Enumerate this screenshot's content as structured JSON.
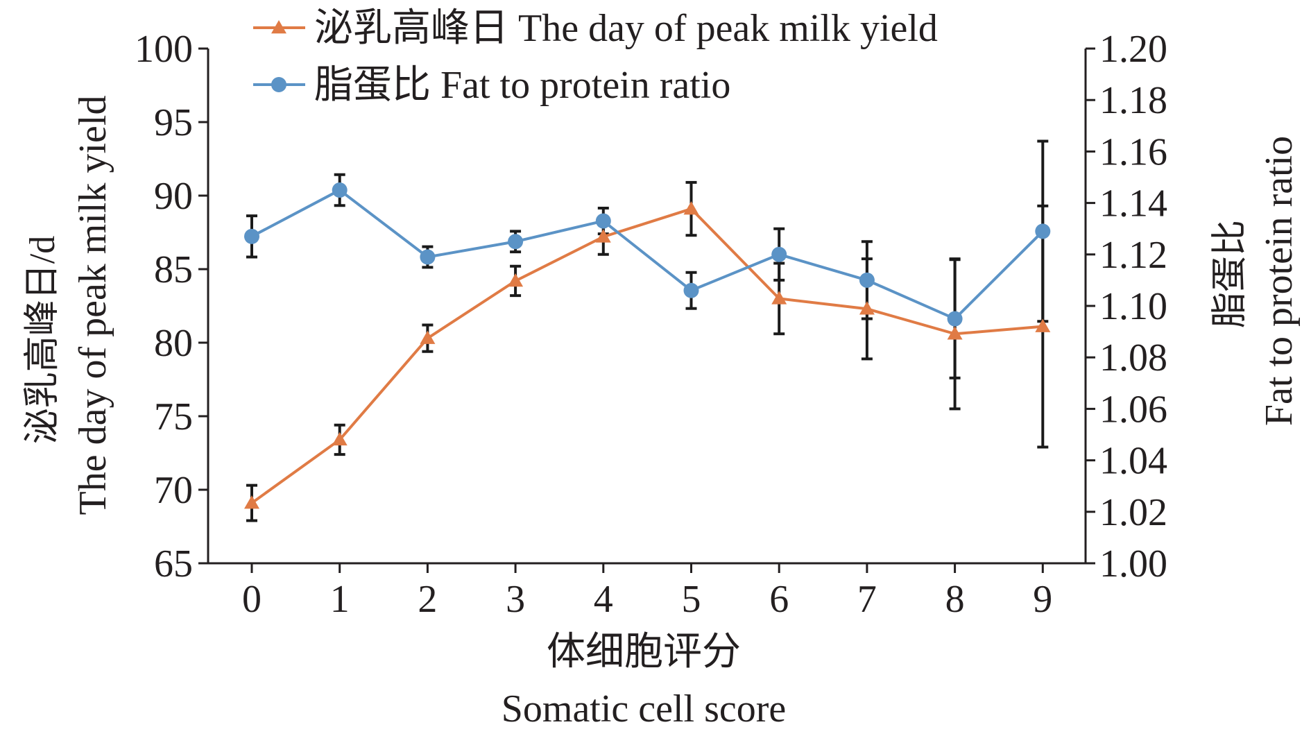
{
  "chart_data": {
    "type": "line",
    "x_categories": [
      "0",
      "1",
      "2",
      "3",
      "4",
      "5",
      "6",
      "7",
      "8",
      "9"
    ],
    "xlabel_cn": "体细胞评分",
    "xlabel_en": "Somatic cell score",
    "y_left": {
      "label_cn": "泌乳高峰日/d",
      "label_en": "The day of peak milk yield",
      "range": [
        65,
        100
      ],
      "ticks": [
        "65",
        "70",
        "75",
        "80",
        "85",
        "90",
        "95",
        "100"
      ]
    },
    "y_right": {
      "label_cn": "脂蛋比",
      "label_en": "Fat to protein ratio",
      "range": [
        1.0,
        1.2
      ],
      "ticks": [
        "1.00",
        "1.02",
        "1.04",
        "1.06",
        "1.08",
        "1.10",
        "1.12",
        "1.14",
        "1.16",
        "1.18",
        "1.20"
      ]
    },
    "series": [
      {
        "name": "泌乳高峰日 The day of peak milk yield",
        "axis": "left",
        "marker": "triangle",
        "color": "#e07b45",
        "values": [
          69.1,
          73.4,
          80.3,
          84.2,
          87.2,
          89.1,
          83.0,
          82.3,
          80.6,
          81.1
        ],
        "errors": [
          1.2,
          1.0,
          0.9,
          1.0,
          1.2,
          1.8,
          2.4,
          3.4,
          5.1,
          8.2
        ]
      },
      {
        "name": "脂蛋比 Fat to protein ratio",
        "axis": "right",
        "marker": "circle",
        "color": "#5b93c6",
        "values": [
          1.127,
          1.145,
          1.119,
          1.125,
          1.133,
          1.106,
          1.12,
          1.11,
          1.095,
          1.129
        ],
        "errors": [
          0.008,
          0.006,
          0.004,
          0.004,
          0.005,
          0.007,
          0.01,
          0.015,
          0.023,
          0.035
        ]
      }
    ],
    "error_bar_color": "#1a1a1a",
    "grid": false,
    "legend_position": "top-left"
  }
}
